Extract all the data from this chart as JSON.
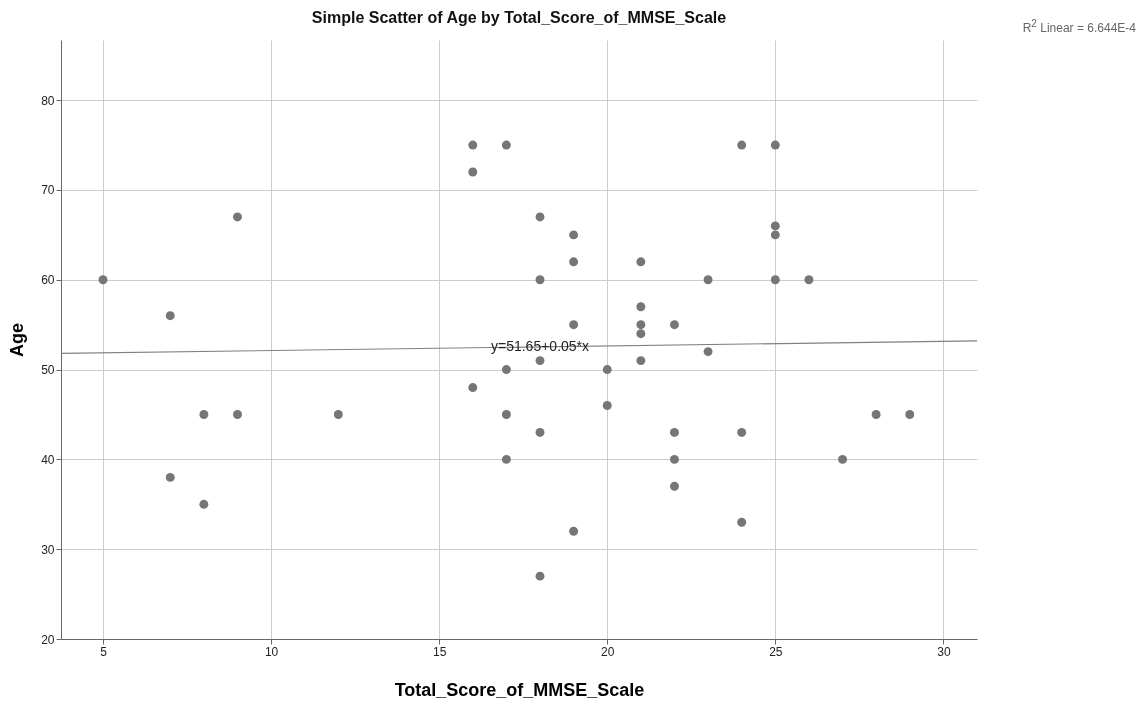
{
  "chart_data": {
    "type": "scatter",
    "title": "Simple Scatter of Age by Total_Score_of_MMSE_Scale",
    "xlabel": "Total_Score_of_MMSE_Scale",
    "ylabel": "Age",
    "annotations": [
      "R$^{2}$ Linear = 6.644E-4",
      {
        "text": "y=51.65+0.05*x",
        "x": 18,
        "y": 52.55
      }
    ],
    "xlim": [
      3.75,
      31
    ],
    "ylim": [
      20,
      86.7
    ],
    "xticks": [
      5,
      10,
      15,
      20,
      25,
      30
    ],
    "yticks": [
      20,
      30,
      40,
      50,
      60,
      70,
      80
    ],
    "grid": true,
    "marker": "circle",
    "series": [
      {
        "color": "#767676",
        "x": [
          5,
          7,
          7,
          8,
          8,
          9,
          9,
          12,
          16,
          16,
          16,
          17,
          17,
          17,
          17,
          18,
          18,
          18,
          18,
          18,
          19,
          19,
          19,
          19,
          20,
          20,
          21,
          21,
          21,
          21,
          21,
          22,
          22,
          22,
          22,
          23,
          23,
          24,
          24,
          24,
          25,
          25,
          25,
          25,
          26,
          27,
          28,
          29
        ],
        "values": [
          60,
          56,
          38,
          45,
          35,
          67,
          45,
          45,
          75,
          72,
          48,
          75,
          50,
          45,
          40,
          67,
          60,
          51,
          43,
          27,
          65,
          62,
          55,
          32,
          50,
          46,
          62,
          57,
          55,
          54,
          51,
          55,
          43,
          40,
          37,
          60,
          52,
          75,
          43,
          33,
          75,
          66,
          65,
          60,
          60,
          40,
          45,
          45
        ]
      },
      {
        "type": "line",
        "marker": "none",
        "color": "#808080",
        "x": [
          3.75,
          31
        ],
        "values": [
          51.8,
          53.2
        ]
      }
    ]
  }
}
